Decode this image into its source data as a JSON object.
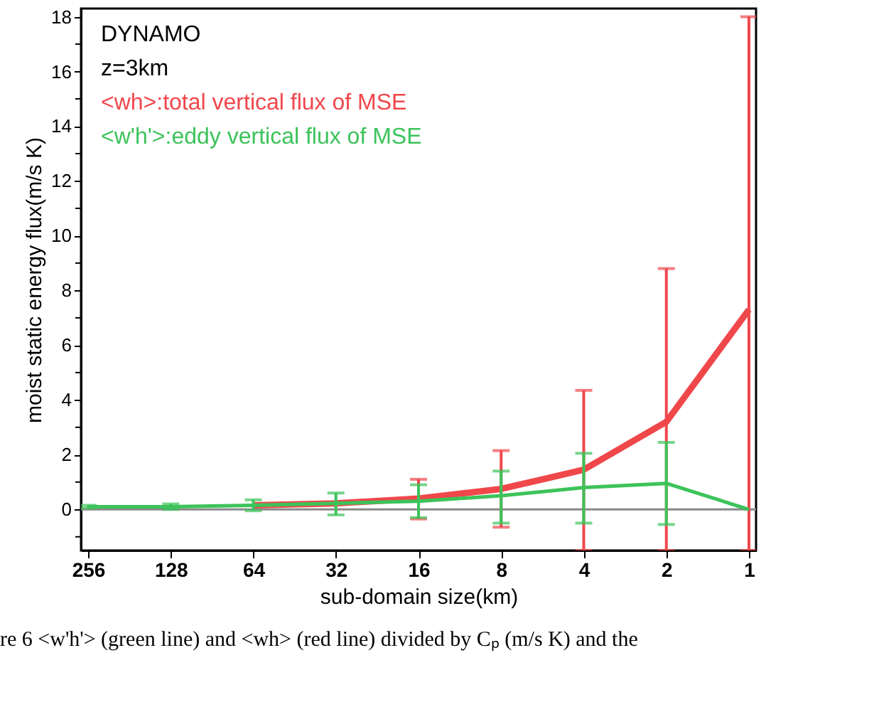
{
  "chart_data": {
    "type": "line",
    "xlabel": "sub-domain size(km)",
    "ylabel": "moist static energy flux(m/s K)",
    "categories": [
      "256",
      "128",
      "64",
      "32",
      "16",
      "8",
      "4",
      "2",
      "1"
    ],
    "series": [
      {
        "name": "<wh>:total vertical flux of MSE",
        "color": "#f0474b",
        "values": [
          null,
          null,
          0.15,
          0.22,
          0.4,
          0.75,
          1.45,
          3.2,
          7.3
        ],
        "errors": [
          null,
          null,
          null,
          null,
          [
            -0.35,
            1.1
          ],
          [
            -0.65,
            2.15
          ],
          [
            -1.5,
            4.35
          ],
          [
            -1.5,
            8.8
          ],
          [
            -1.5,
            18.0
          ]
        ]
      },
      {
        "name": "<w'h'>:eddy vertical flux of MSE",
        "color": "#3cc35a",
        "values": [
          0.1,
          0.1,
          0.15,
          0.22,
          0.3,
          0.5,
          0.8,
          0.95,
          0.0
        ],
        "errors": [
          [
            0.05,
            0.15
          ],
          [
            0.0,
            0.2
          ],
          [
            -0.05,
            0.35
          ],
          [
            -0.2,
            0.6
          ],
          [
            -0.3,
            0.9
          ],
          [
            -0.5,
            1.4
          ],
          [
            -0.5,
            2.05
          ],
          [
            -0.55,
            2.45
          ],
          null
        ]
      }
    ],
    "ylim": [
      -1.5,
      18.3
    ],
    "yticks": [
      {
        "value": -1,
        "label": null
      },
      0,
      {
        "value": 1,
        "label": null
      },
      2,
      {
        "value": 3,
        "label": null
      },
      4,
      {
        "value": 5,
        "label": null
      },
      6,
      {
        "value": 7,
        "label": null
      },
      8,
      {
        "value": 9,
        "label": null
      },
      10,
      {
        "value": 11,
        "label": null
      },
      12,
      {
        "value": 13,
        "label": null
      },
      14,
      {
        "value": 15,
        "label": null
      },
      16,
      {
        "value": 17,
        "label": null
      },
      18
    ],
    "ref_lines": [
      {
        "axis": "y",
        "value": 0,
        "label": null,
        "color": "#888888"
      }
    ],
    "legend": "top left",
    "grid": false,
    "marker": "none",
    "line_style": "solid",
    "annotations": [
      "DYNAMO",
      "z=3km",
      "re 6 <w'h'> (green line) and <wh> (red line) divided by Cₚ (m/s K) and the"
    ]
  }
}
